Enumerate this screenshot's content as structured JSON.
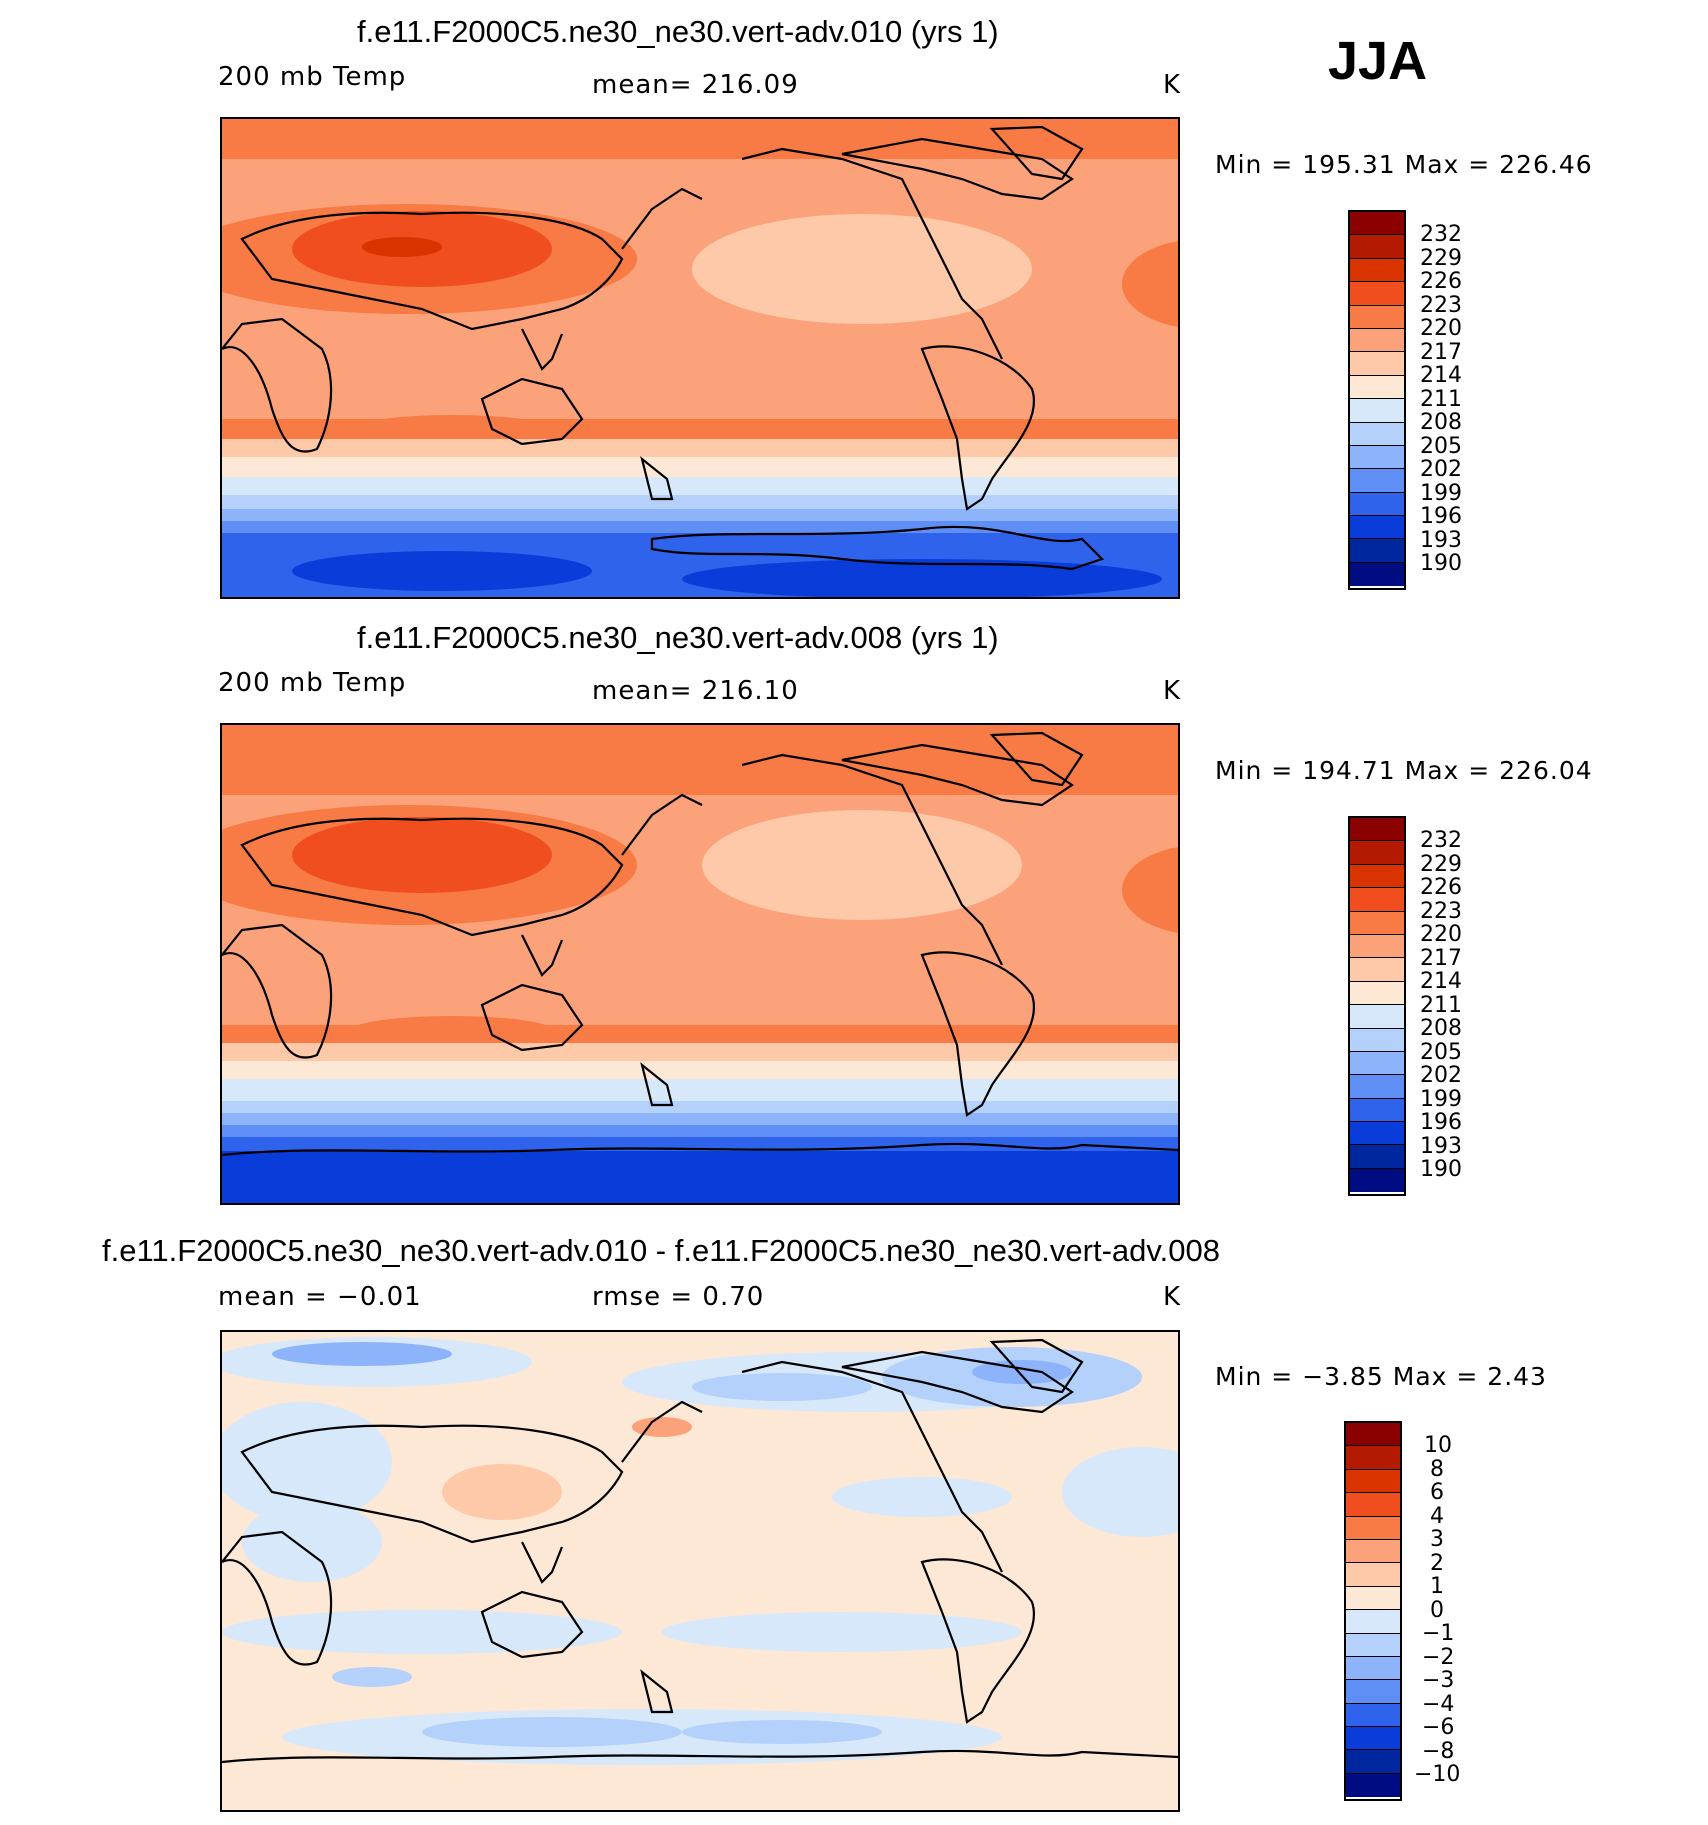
{
  "season": "JJA",
  "panels": [
    {
      "title": "f.e11.F2000C5.ne30_ne30.vert-adv.010 (yrs 1)",
      "left_label": "200 mb Temp",
      "center_label": "mean=  216.09",
      "units": "K",
      "minmax": "Min  =  195.31  Max  =  226.46",
      "colorbar_labels": [
        "232",
        "229",
        "226",
        "223",
        "220",
        "217",
        "214",
        "211",
        "208",
        "205",
        "202",
        "199",
        "196",
        "193",
        "190"
      ]
    },
    {
      "title": "f.e11.F2000C5.ne30_ne30.vert-adv.008 (yrs 1)",
      "left_label": "200 mb Temp",
      "center_label": "mean=  216.10",
      "units": "K",
      "minmax": "Min  =  194.71  Max  =  226.04",
      "colorbar_labels": [
        "232",
        "229",
        "226",
        "223",
        "220",
        "217",
        "214",
        "211",
        "208",
        "205",
        "202",
        "199",
        "196",
        "193",
        "190"
      ]
    },
    {
      "title": "f.e11.F2000C5.ne30_ne30.vert-adv.010 - f.e11.F2000C5.ne30_ne30.vert-adv.008",
      "left_label": "mean =   −0.01",
      "center_label": "rmse =    0.70",
      "units": "K",
      "minmax": "Min  =   −3.85  Max  =    2.43",
      "colorbar_labels": [
        "10",
        "8",
        "6",
        "4",
        "3",
        "2",
        "1",
        "0",
        "−1",
        "−2",
        "−3",
        "−4",
        "−6",
        "−8",
        "−10"
      ]
    }
  ],
  "colorbar_colors": [
    "#8b0000",
    "#b31a00",
    "#d93300",
    "#f04e1e",
    "#f87a45",
    "#fba27a",
    "#fdc9a8",
    "#fde8d6",
    "#d6e8fa",
    "#b4d1fb",
    "#8db4fa",
    "#5f8ef5",
    "#2f63ec",
    "#0a3cd9",
    "#00279e",
    "#000d82"
  ]
}
